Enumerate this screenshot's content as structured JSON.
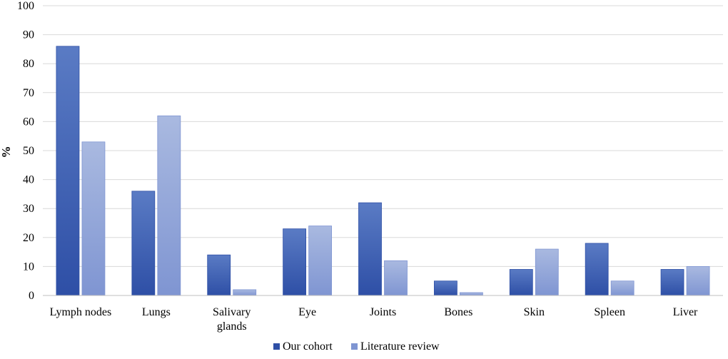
{
  "chart_data": {
    "type": "bar",
    "title": "",
    "xlabel": "",
    "ylabel": "%",
    "ylim": [
      0,
      100
    ],
    "yticks": [
      0,
      10,
      20,
      30,
      40,
      50,
      60,
      70,
      80,
      90,
      100
    ],
    "grid": true,
    "legend_position": "bottom",
    "categories": [
      [
        "Lymph nodes"
      ],
      [
        "Lungs"
      ],
      [
        "Salivary",
        "glands"
      ],
      [
        "Eye"
      ],
      [
        "Joints"
      ],
      [
        "Bones"
      ],
      [
        "Skin"
      ],
      [
        "Spleen"
      ],
      [
        "Liver"
      ]
    ],
    "series": [
      {
        "name": "Our cohort",
        "values": [
          86,
          36,
          14,
          23,
          32,
          5,
          9,
          18,
          9
        ],
        "color_top": "#5a7bc4",
        "color_bottom": "#2e4fa6"
      },
      {
        "name": "Literature review",
        "values": [
          53,
          62,
          2,
          24,
          12,
          1,
          16,
          5,
          10
        ],
        "color_top": "#a9b9e0",
        "color_bottom": "#7f95d2"
      }
    ]
  }
}
